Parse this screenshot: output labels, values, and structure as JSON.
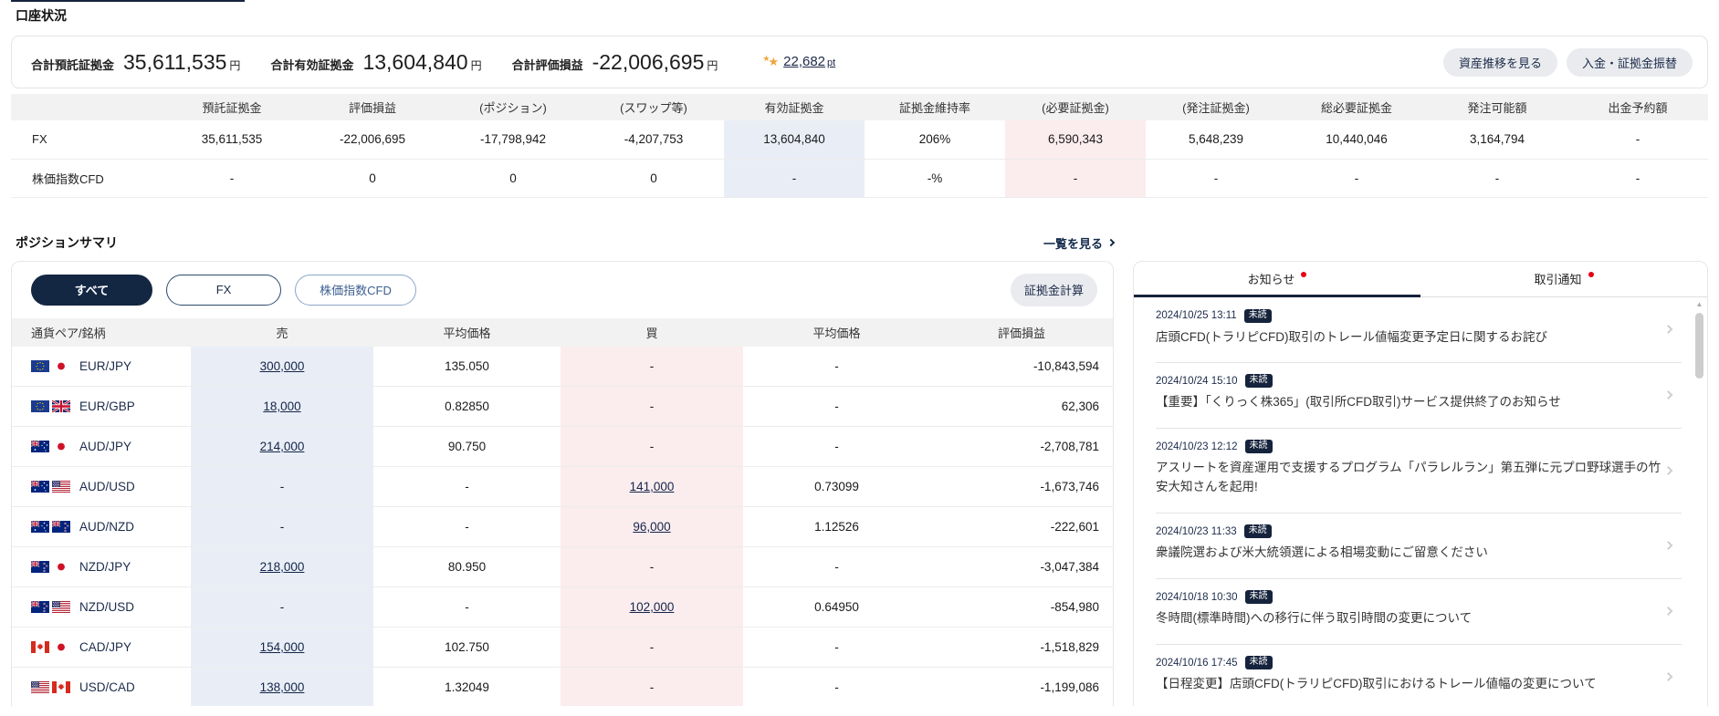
{
  "page": {
    "title": "口座状況"
  },
  "summary": {
    "items": [
      {
        "label": "合計預託証拠金",
        "value": "35,611,535",
        "unit": "円"
      },
      {
        "label": "合計有効証拠金",
        "value": "13,604,840",
        "unit": "円"
      },
      {
        "label": "合計評価損益",
        "value": "-22,006,695",
        "unit": "円"
      }
    ],
    "points": {
      "value": "22,682",
      "unit": "pt",
      "star_icon": "★"
    },
    "buttons": [
      {
        "label": "資産推移を見る"
      },
      {
        "label": "入金・証拠金振替"
      }
    ]
  },
  "account_table": {
    "columns": [
      "預託証拠金",
      "評価損益",
      "(ポジション)",
      "(スワップ等)",
      "有効証拠金",
      "証拠金維持率",
      "(必要証拠金)",
      "(発注証拠金)",
      "総必要証拠金",
      "発注可能額",
      "出金予約額"
    ],
    "rows": [
      {
        "label": "FX",
        "cells": [
          "35,611,535",
          "-22,006,695",
          "-17,798,942",
          "-4,207,753",
          "13,604,840",
          "206%",
          "6,590,343",
          "5,648,239",
          "10,440,046",
          "3,164,794",
          "-"
        ]
      },
      {
        "label": "株価指数CFD",
        "cells": [
          "-",
          "0",
          "0",
          "0",
          "-",
          "-%",
          "-",
          "-",
          "-",
          "-",
          "-"
        ]
      }
    ]
  },
  "positions": {
    "heading": "ポジションサマリ",
    "view_all": "一覧を見る",
    "filters": [
      {
        "label": "すべて",
        "active": true
      },
      {
        "label": "FX",
        "active": false
      },
      {
        "label": "株価指数CFD",
        "active": false
      }
    ],
    "margin_calc_label": "証拠金計算",
    "columns": [
      "通貨ペア/銘柄",
      "売",
      "平均価格",
      "買",
      "平均価格",
      "評価損益"
    ],
    "rows": [
      {
        "pair": "EUR/JPY",
        "sell": "300,000",
        "sell_avg": "135.050",
        "buy": "-",
        "buy_avg": "-",
        "pl": "-10,843,594"
      },
      {
        "pair": "EUR/GBP",
        "sell": "18,000",
        "sell_avg": "0.82850",
        "buy": "-",
        "buy_avg": "-",
        "pl": "62,306"
      },
      {
        "pair": "AUD/JPY",
        "sell": "214,000",
        "sell_avg": "90.750",
        "buy": "-",
        "buy_avg": "-",
        "pl": "-2,708,781"
      },
      {
        "pair": "AUD/USD",
        "sell": "-",
        "sell_avg": "-",
        "buy": "141,000",
        "buy_avg": "0.73099",
        "pl": "-1,673,746"
      },
      {
        "pair": "AUD/NZD",
        "sell": "-",
        "sell_avg": "-",
        "buy": "96,000",
        "buy_avg": "1.12526",
        "pl": "-222,601"
      },
      {
        "pair": "NZD/JPY",
        "sell": "218,000",
        "sell_avg": "80.950",
        "buy": "-",
        "buy_avg": "-",
        "pl": "-3,047,384"
      },
      {
        "pair": "NZD/USD",
        "sell": "-",
        "sell_avg": "-",
        "buy": "102,000",
        "buy_avg": "0.64950",
        "pl": "-854,980"
      },
      {
        "pair": "CAD/JPY",
        "sell": "154,000",
        "sell_avg": "102.750",
        "buy": "-",
        "buy_avg": "-",
        "pl": "-1,518,829"
      },
      {
        "pair": "USD/CAD",
        "sell": "138,000",
        "sell_avg": "1.32049",
        "buy": "-",
        "buy_avg": "-",
        "pl": "-1,199,086"
      }
    ]
  },
  "news": {
    "tabs": [
      {
        "label": "お知らせ",
        "active": true,
        "unread": true
      },
      {
        "label": "取引通知",
        "active": false,
        "unread": true
      }
    ],
    "unread_label": "未読",
    "scroll_up_arrow": "▲",
    "items": [
      {
        "datetime": "2024/10/25 13:11",
        "title": "店頭CFD(トラリピCFD)取引のトレール値幅変更予定日に関するお詫び"
      },
      {
        "datetime": "2024/10/24 15:10",
        "title": "【重要】「くりっく株365」(取引所CFD取引)サービス提供終了のお知らせ"
      },
      {
        "datetime": "2024/10/23 12:12",
        "title": "アスリートを資産運用で支援するプログラム「パラレルラン」第五弾に元プロ野球選手の竹安大知さんを起用!"
      },
      {
        "datetime": "2024/10/23 11:33",
        "title": "衆議院選および米大統領選による相場変動にご留意ください"
      },
      {
        "datetime": "2024/10/18 10:30",
        "title": "冬時間(標準時間)への移行に伴う取引時間の変更について"
      },
      {
        "datetime": "2024/10/16 17:45",
        "title": "【日程変更】店頭CFD(トラリピCFD)取引におけるトレール値幅の変更について"
      }
    ]
  },
  "colors": {
    "brand_navy": "#15233c",
    "unread_red": "#e60012",
    "highlight_blue": "#e9eef6",
    "highlight_pink": "#fbecee",
    "table_header_gray": "#f2f2f2",
    "button_gray": "#e9ebee",
    "star_gold": "#eda63a",
    "link_navy": "#15254a"
  }
}
